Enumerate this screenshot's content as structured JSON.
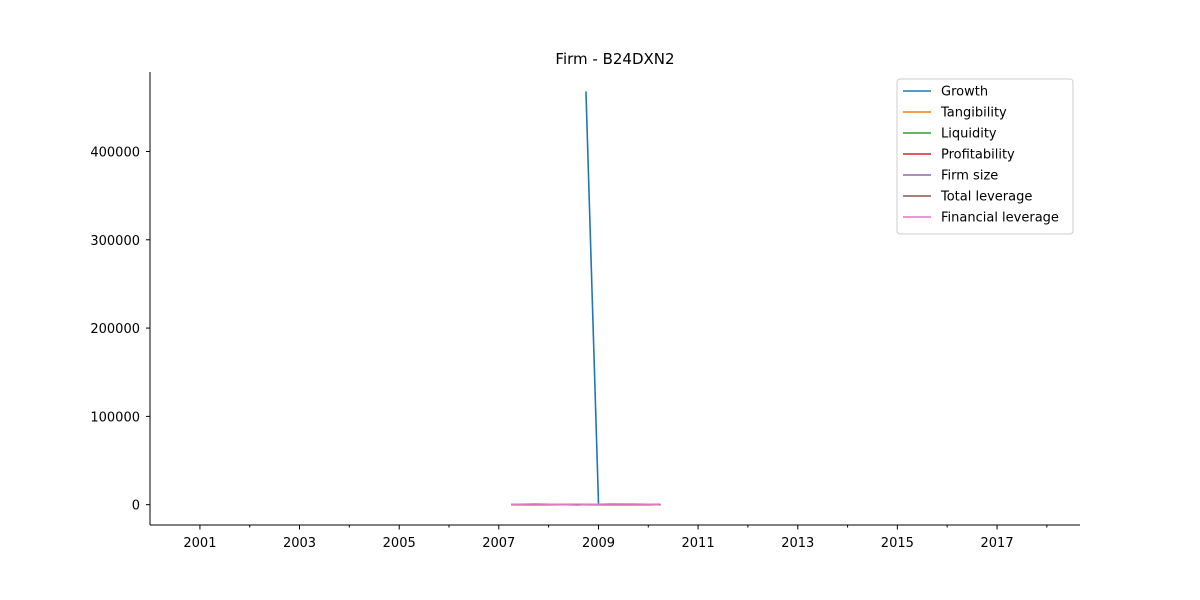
{
  "chart_data": {
    "type": "line",
    "title": "Firm - B24DXN2",
    "xlabel": "",
    "ylabel": "",
    "xlim": [
      "2000-01-01",
      "2018-09-01"
    ],
    "ylim": [
      -23000,
      490000
    ],
    "x_ticks_major": [
      "2001",
      "2003",
      "2005",
      "2007",
      "2009",
      "2011",
      "2013",
      "2015",
      "2017"
    ],
    "x_ticks_minor": [
      "2002",
      "2004",
      "2006",
      "2008",
      "2010",
      "2012",
      "2014",
      "2016",
      "2018"
    ],
    "y_ticks": [
      {
        "value": 0,
        "label": "0"
      },
      {
        "value": 100000,
        "label": "100000"
      },
      {
        "value": 200000,
        "label": "200000"
      },
      {
        "value": 300000,
        "label": "300000"
      },
      {
        "value": 400000,
        "label": "400000"
      }
    ],
    "grid": false,
    "legend_position": "upper right",
    "series": [
      {
        "name": "Growth",
        "color": "#1f77b4",
        "points": [
          [
            "2008-10-01",
            468000
          ],
          [
            "2009-01-01",
            1000
          ]
        ]
      },
      {
        "name": "Tangibility",
        "color": "#ff7f0e",
        "points": [
          [
            "2007-04-01",
            0.6
          ],
          [
            "2007-10-01",
            0.6
          ],
          [
            "2008-04-01",
            0.6
          ],
          [
            "2008-10-01",
            0.6
          ],
          [
            "2009-04-01",
            0.6
          ],
          [
            "2009-10-01",
            0.6
          ],
          [
            "2010-04-01",
            0.6
          ]
        ]
      },
      {
        "name": "Liquidity",
        "color": "#2ca02c",
        "points": [
          [
            "2007-04-01",
            1.5
          ],
          [
            "2007-10-01",
            1.5
          ],
          [
            "2008-04-01",
            1.5
          ],
          [
            "2008-10-01",
            1.5
          ],
          [
            "2009-04-01",
            1.5
          ],
          [
            "2009-10-01",
            1.5
          ],
          [
            "2010-04-01",
            1.5
          ]
        ]
      },
      {
        "name": "Profitability",
        "color": "#d62728",
        "points": [
          [
            "2007-04-01",
            0.1
          ],
          [
            "2007-10-01",
            0.1
          ],
          [
            "2008-04-01",
            0.1
          ],
          [
            "2008-10-01",
            0.1
          ],
          [
            "2009-04-01",
            0.1
          ],
          [
            "2009-10-01",
            0.1
          ],
          [
            "2010-04-01",
            0.1
          ]
        ]
      },
      {
        "name": "Firm size",
        "color": "#9467bd",
        "points": [
          [
            "2007-04-01",
            12
          ],
          [
            "2007-10-01",
            12
          ],
          [
            "2008-04-01",
            12
          ],
          [
            "2008-10-01",
            12
          ],
          [
            "2009-04-01",
            12
          ],
          [
            "2009-10-01",
            12
          ],
          [
            "2010-04-01",
            12
          ]
        ]
      },
      {
        "name": "Total leverage",
        "color": "#8c564b",
        "points": [
          [
            "2007-04-01",
            0.5
          ],
          [
            "2007-10-01",
            0.5
          ],
          [
            "2008-04-01",
            0.5
          ],
          [
            "2008-10-01",
            0.5
          ],
          [
            "2009-04-01",
            0.5
          ],
          [
            "2009-10-01",
            0.5
          ],
          [
            "2010-04-01",
            0.5
          ]
        ]
      },
      {
        "name": "Financial leverage",
        "color": "#e377c2",
        "points": [
          [
            "2007-04-01",
            300
          ],
          [
            "2007-10-01",
            900
          ],
          [
            "2008-04-01",
            100
          ],
          [
            "2008-08-01",
            -400
          ],
          [
            "2008-10-01",
            200
          ],
          [
            "2009-01-01",
            500
          ],
          [
            "2009-04-01",
            900
          ],
          [
            "2009-10-01",
            700
          ],
          [
            "2010-01-01",
            500
          ],
          [
            "2010-04-01",
            -300
          ]
        ]
      }
    ]
  }
}
